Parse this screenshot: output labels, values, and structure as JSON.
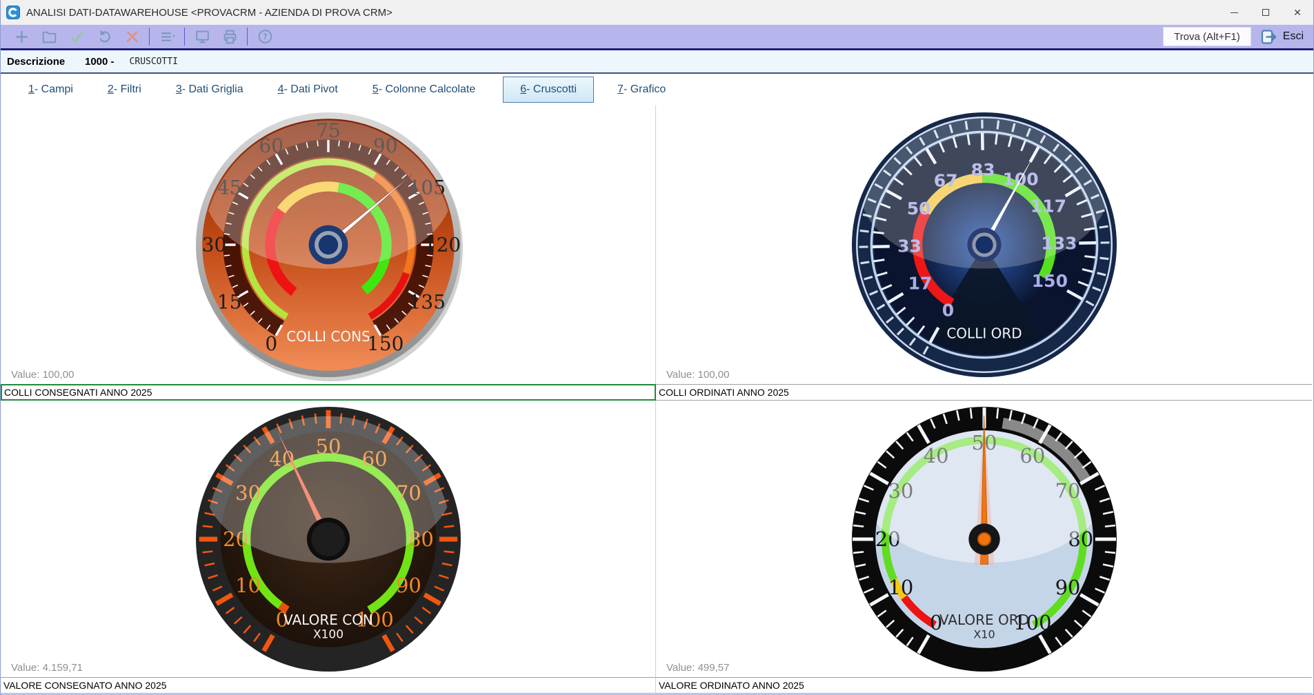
{
  "window": {
    "title": "ANALISI DATI-DATAWAREHOUSE <PROVACRM - AZIENDA DI PROVA CRM>"
  },
  "toolbar": {
    "buttons": [
      {
        "icon": "new-plus-icon",
        "sep_after": false
      },
      {
        "icon": "open-folder-icon",
        "sep_after": false
      },
      {
        "icon": "confirm-check-icon",
        "sep_after": false
      },
      {
        "icon": "undo-icon",
        "sep_after": false
      },
      {
        "icon": "delete-x-icon",
        "sep_after": true
      },
      {
        "icon": "menu-list-icon",
        "sep_after": true
      },
      {
        "icon": "monitor-icon",
        "sep_after": false
      },
      {
        "icon": "print-icon",
        "sep_after": true
      },
      {
        "icon": "help-icon",
        "sep_after": false
      }
    ],
    "trova_label": "Trova (Alt+F1)",
    "esci_label": "Esci"
  },
  "header": {
    "descrizione_label": "Descrizione",
    "code": "1000 -",
    "name": "CRUSCOTTI"
  },
  "tabs": [
    {
      "num": "1",
      "rest": " - Campi",
      "active": false
    },
    {
      "num": "2",
      "rest": " - Filtri",
      "active": false
    },
    {
      "num": "3",
      "rest": " - Dati Griglia",
      "active": false
    },
    {
      "num": "4",
      "rest": " - Dati Pivot",
      "active": false
    },
    {
      "num": "5",
      "rest": " - Colonne Calcolate",
      "active": false
    },
    {
      "num": "6",
      "rest": " - Cruscotti",
      "active": true
    },
    {
      "num": "7",
      "rest": " - Grafico",
      "active": false
    }
  ],
  "panels": [
    {
      "value_label": "Value: 100,00",
      "description": "COLLI CONSEGNATI ANNO 2025",
      "selected": true
    },
    {
      "value_label": "Value: 100,00",
      "description": "COLLI ORDINATI ANNO 2025",
      "selected": false
    },
    {
      "value_label": "Value: 4.159,71",
      "description": "VALORE CONSEGNATO ANNO 2025",
      "selected": false
    },
    {
      "value_label": "Value: 499,57",
      "description": "VALORE ORDINATO ANNO 2025",
      "selected": false
    }
  ],
  "colors": {
    "toolbar_bg": "#b6b6ec",
    "toolbar_border": "#1d1d7e",
    "header_bg": "#edf6fd",
    "tab_text": "#1f4e79",
    "selected_border": "#1f8a3c",
    "icon_blue": "#7d9abc",
    "check_green": "#90cc90",
    "x_red": "#e29180"
  },
  "chart_data": [
    {
      "type": "gauge",
      "name": "colli-cons",
      "title": "COLLI CONS",
      "subtitle": "",
      "display_value": "100,00",
      "value": 100.0,
      "min": 0,
      "max": 150,
      "start_angle": 240,
      "sweep": 300,
      "labels": [
        "0",
        "15",
        "30",
        "45",
        "60",
        "75",
        "90",
        "105",
        "120",
        "135",
        "150"
      ],
      "minor_per_major": 5,
      "style": {
        "rim": [
          "#d9d9d9",
          "#8c8c8c"
        ],
        "face": {
          "grad3": [
            "#7e2304",
            "#c24b16",
            "#f28c57"
          ]
        },
        "tick_band": {
          "r1": 0.665,
          "r2": 0.795,
          "color": "rgba(52,9,1,0.85)"
        },
        "tick_color": "#ffffff",
        "major_tick": {
          "r1": 0.7,
          "r2": 0.792,
          "w": 3.4
        },
        "minor_tick": {
          "r1": 0.748,
          "r2": 0.792,
          "w": 1.6
        },
        "number_color": "#1c1c1c",
        "number_r": 0.862,
        "number_size": 28,
        "number_font": "serif",
        "bands": [
          {
            "from": 0,
            "to": 92,
            "color": "#b4e43e",
            "r": 0.627,
            "w": 0.052
          },
          {
            "from": 92,
            "to": 130,
            "color": "#f1761c",
            "r": 0.627,
            "w": 0.052
          },
          {
            "from": 130,
            "to": 150,
            "color": "#e71111",
            "r": 0.627,
            "w": 0.052
          },
          {
            "from": 3,
            "to": 48,
            "color": "#ee1212",
            "r": 0.44,
            "w": 0.075
          },
          {
            "from": 48,
            "to": 80,
            "color": "#f7ca40",
            "r": 0.44,
            "w": 0.075
          },
          {
            "from": 80,
            "to": 146,
            "color": "#3fe70f",
            "r": 0.44,
            "w": 0.075
          }
        ],
        "needle": {
          "color": "#ffffff",
          "tip": 0.82,
          "w": 7,
          "stroke": "rgba(70,10,0,0.4)"
        },
        "hub": [
          {
            "r": 0.148,
            "color": "#1f3b74"
          },
          {
            "r": 0.104,
            "color": "#99a2b4"
          },
          {
            "r": 0.074,
            "color": "#17356e"
          }
        ],
        "gloss": 0.28,
        "gloss_clip": 0.94,
        "title_dy": 0.73,
        "title_size": 20,
        "title_color": "#f7f7f7"
      }
    },
    {
      "type": "gauge",
      "name": "colli-ord",
      "title": "COLLI ORD",
      "subtitle": "",
      "display_value": "100,00",
      "value": 100.0,
      "min": 0,
      "max": 150,
      "start_angle": 241,
      "sweep": 270,
      "labels": [
        "0",
        "17",
        "33",
        "50",
        "67",
        "83",
        "100",
        "117",
        "133",
        "150"
      ],
      "minor_per_major": 4,
      "style": {
        "outer_fill": "#152848",
        "rings": [
          {
            "r": 0.962,
            "w": 2.5,
            "color": "#ccd8f0"
          },
          {
            "r": 0.852,
            "w": 3.5,
            "color": "#bed1ec"
          }
        ],
        "face": {
          "r": 0.832,
          "color": "#0a142e"
        },
        "glow": {
          "r": 0.55,
          "color": "#2d5cb6"
        },
        "cone": {
          "a1": -122,
          "a2": -58,
          "r": 0.82,
          "color": "#0b1628"
        },
        "tick_color": "#e9f1fd",
        "major_tick": {
          "r1": 0.715,
          "r2": 0.845,
          "w": 4.5
        },
        "minor_tick": {
          "r1": 0.762,
          "r2": 0.845,
          "w": 3
        },
        "outer_tick": {
          "r1": 0.878,
          "r2": 0.945,
          "w": 3.2
        },
        "number_color": "#a9aee4",
        "number_r": 0.565,
        "number_size": 25,
        "number_bold": true,
        "bands": [
          {
            "from": 0,
            "to": 50,
            "color": "#ee1616",
            "r": 0.505,
            "w": 0.075
          },
          {
            "from": 50,
            "to": 83,
            "color": "#f4cb4e",
            "r": 0.505,
            "w": 0.075
          },
          {
            "from": 83,
            "to": 150,
            "color": "#55e01e",
            "r": 0.505,
            "w": 0.075
          }
        ],
        "needle": {
          "color": "#ffffff",
          "tip": 0.78,
          "w": 6.5
        },
        "hub": [
          {
            "r": 0.128,
            "color": "#2b3e74"
          },
          {
            "r": 0.092,
            "color": "#9098ab"
          },
          {
            "r": 0.066,
            "color": "#163068"
          }
        ],
        "gloss": 0.22,
        "gloss_clip": 0.965,
        "title_dy": 0.705,
        "title_size": 20,
        "title_color": "#f2f2f2"
      }
    },
    {
      "type": "gauge",
      "name": "valore-con",
      "title": "VALORE CON",
      "subtitle": "X100",
      "display_value": "4.159,71",
      "value": 41.6,
      "min": 0,
      "max": 100,
      "start_angle": 240,
      "sweep": 300,
      "labels": [
        "0",
        "10",
        "20",
        "30",
        "40",
        "50",
        "60",
        "70",
        "80",
        "90",
        "100"
      ],
      "minor_per_major": 5,
      "style": {
        "outer_fill": "#242424",
        "face": {
          "r": 0.815,
          "grad": [
            "#3d2817",
            "#170d07"
          ]
        },
        "tick_color": "#f2560f",
        "major_tick": {
          "r1": 0.838,
          "r2": 0.975,
          "w": 7
        },
        "minor_tick": {
          "r1": 0.878,
          "r2": 0.955,
          "w": 2.6
        },
        "number_color": "#f08b26",
        "number_r": 0.7,
        "number_size": 29,
        "number_font": "serif",
        "bands": [
          {
            "from": 0,
            "to": 2,
            "color": "#e8500e",
            "r": 0.618,
            "w": 0.062
          },
          {
            "from": 2,
            "to": 100,
            "color": "#71e415",
            "r": 0.618,
            "w": 0.062
          }
        ],
        "needle": {
          "color": "#f5917a",
          "tip": 0.9,
          "w": 9
        },
        "hub": [
          {
            "r": 0.162,
            "color": "#0e0e0e"
          },
          {
            "r": 0.128,
            "color": "#1d1d1d"
          }
        ],
        "gloss": 0.27,
        "gloss_clip": 0.93,
        "title_dy": 0.645,
        "title_size": 20,
        "title_color": "#f5f5f5",
        "subtitle_dy": 0.748,
        "subtitle_size": 17
      }
    },
    {
      "type": "gauge",
      "name": "valore-ord",
      "title": "VALORE ORD",
      "subtitle": "X10",
      "display_value": "499,57",
      "value": 49.96,
      "min": 0,
      "max": 100,
      "start_angle": 240,
      "sweep": 300,
      "labels": [
        "0",
        "10",
        "20",
        "30",
        "40",
        "50",
        "60",
        "70",
        "80",
        "90",
        "100"
      ],
      "minor_per_major": 5,
      "style": {
        "outer_fill": "#0b0b0b",
        "face": {
          "r": 0.822,
          "color": "#c5d5e8"
        },
        "gray_arc": {
          "from": 53,
          "to": 70,
          "r": 0.888,
          "w": 0.082,
          "color": "#a0a0a0",
          "opacity": 0.85
        },
        "tick_color": "#f4f8fd",
        "major_tick": {
          "r1": 0.838,
          "r2": 0.995,
          "w": 5
        },
        "minor_tick": {
          "r1": 0.916,
          "r2": 0.995,
          "w": 2.6
        },
        "number_color": "#161616",
        "number_r": 0.728,
        "number_size": 29,
        "number_font": "serif",
        "bands": [
          {
            "from": 0,
            "to": 8,
            "color": "#ee1212",
            "r": 0.748,
            "w": 0.058
          },
          {
            "from": 8,
            "to": 12,
            "color": "#f3c916",
            "r": 0.748,
            "w": 0.058
          },
          {
            "from": 12,
            "to": 100,
            "color": "#60dd21",
            "r": 0.748,
            "w": 0.058
          }
        ],
        "needle": {
          "color": "#f2740f",
          "tip": 0.935,
          "w": 11,
          "tail": 0.19,
          "halo": "#f4a58e",
          "stroke": "#b65708"
        },
        "hub": [
          {
            "r": 0.118,
            "color": "#161616"
          },
          {
            "r": 0.047,
            "color": "#f2740f",
            "stroke": "#b65708",
            "sw": 2
          }
        ],
        "gloss": 0.44,
        "gloss_clip": 0.822,
        "title_dy": 0.645,
        "title_size": 20,
        "title_color": "#2f2f2f",
        "subtitle_dy": 0.748,
        "subtitle_size": 16
      }
    }
  ]
}
